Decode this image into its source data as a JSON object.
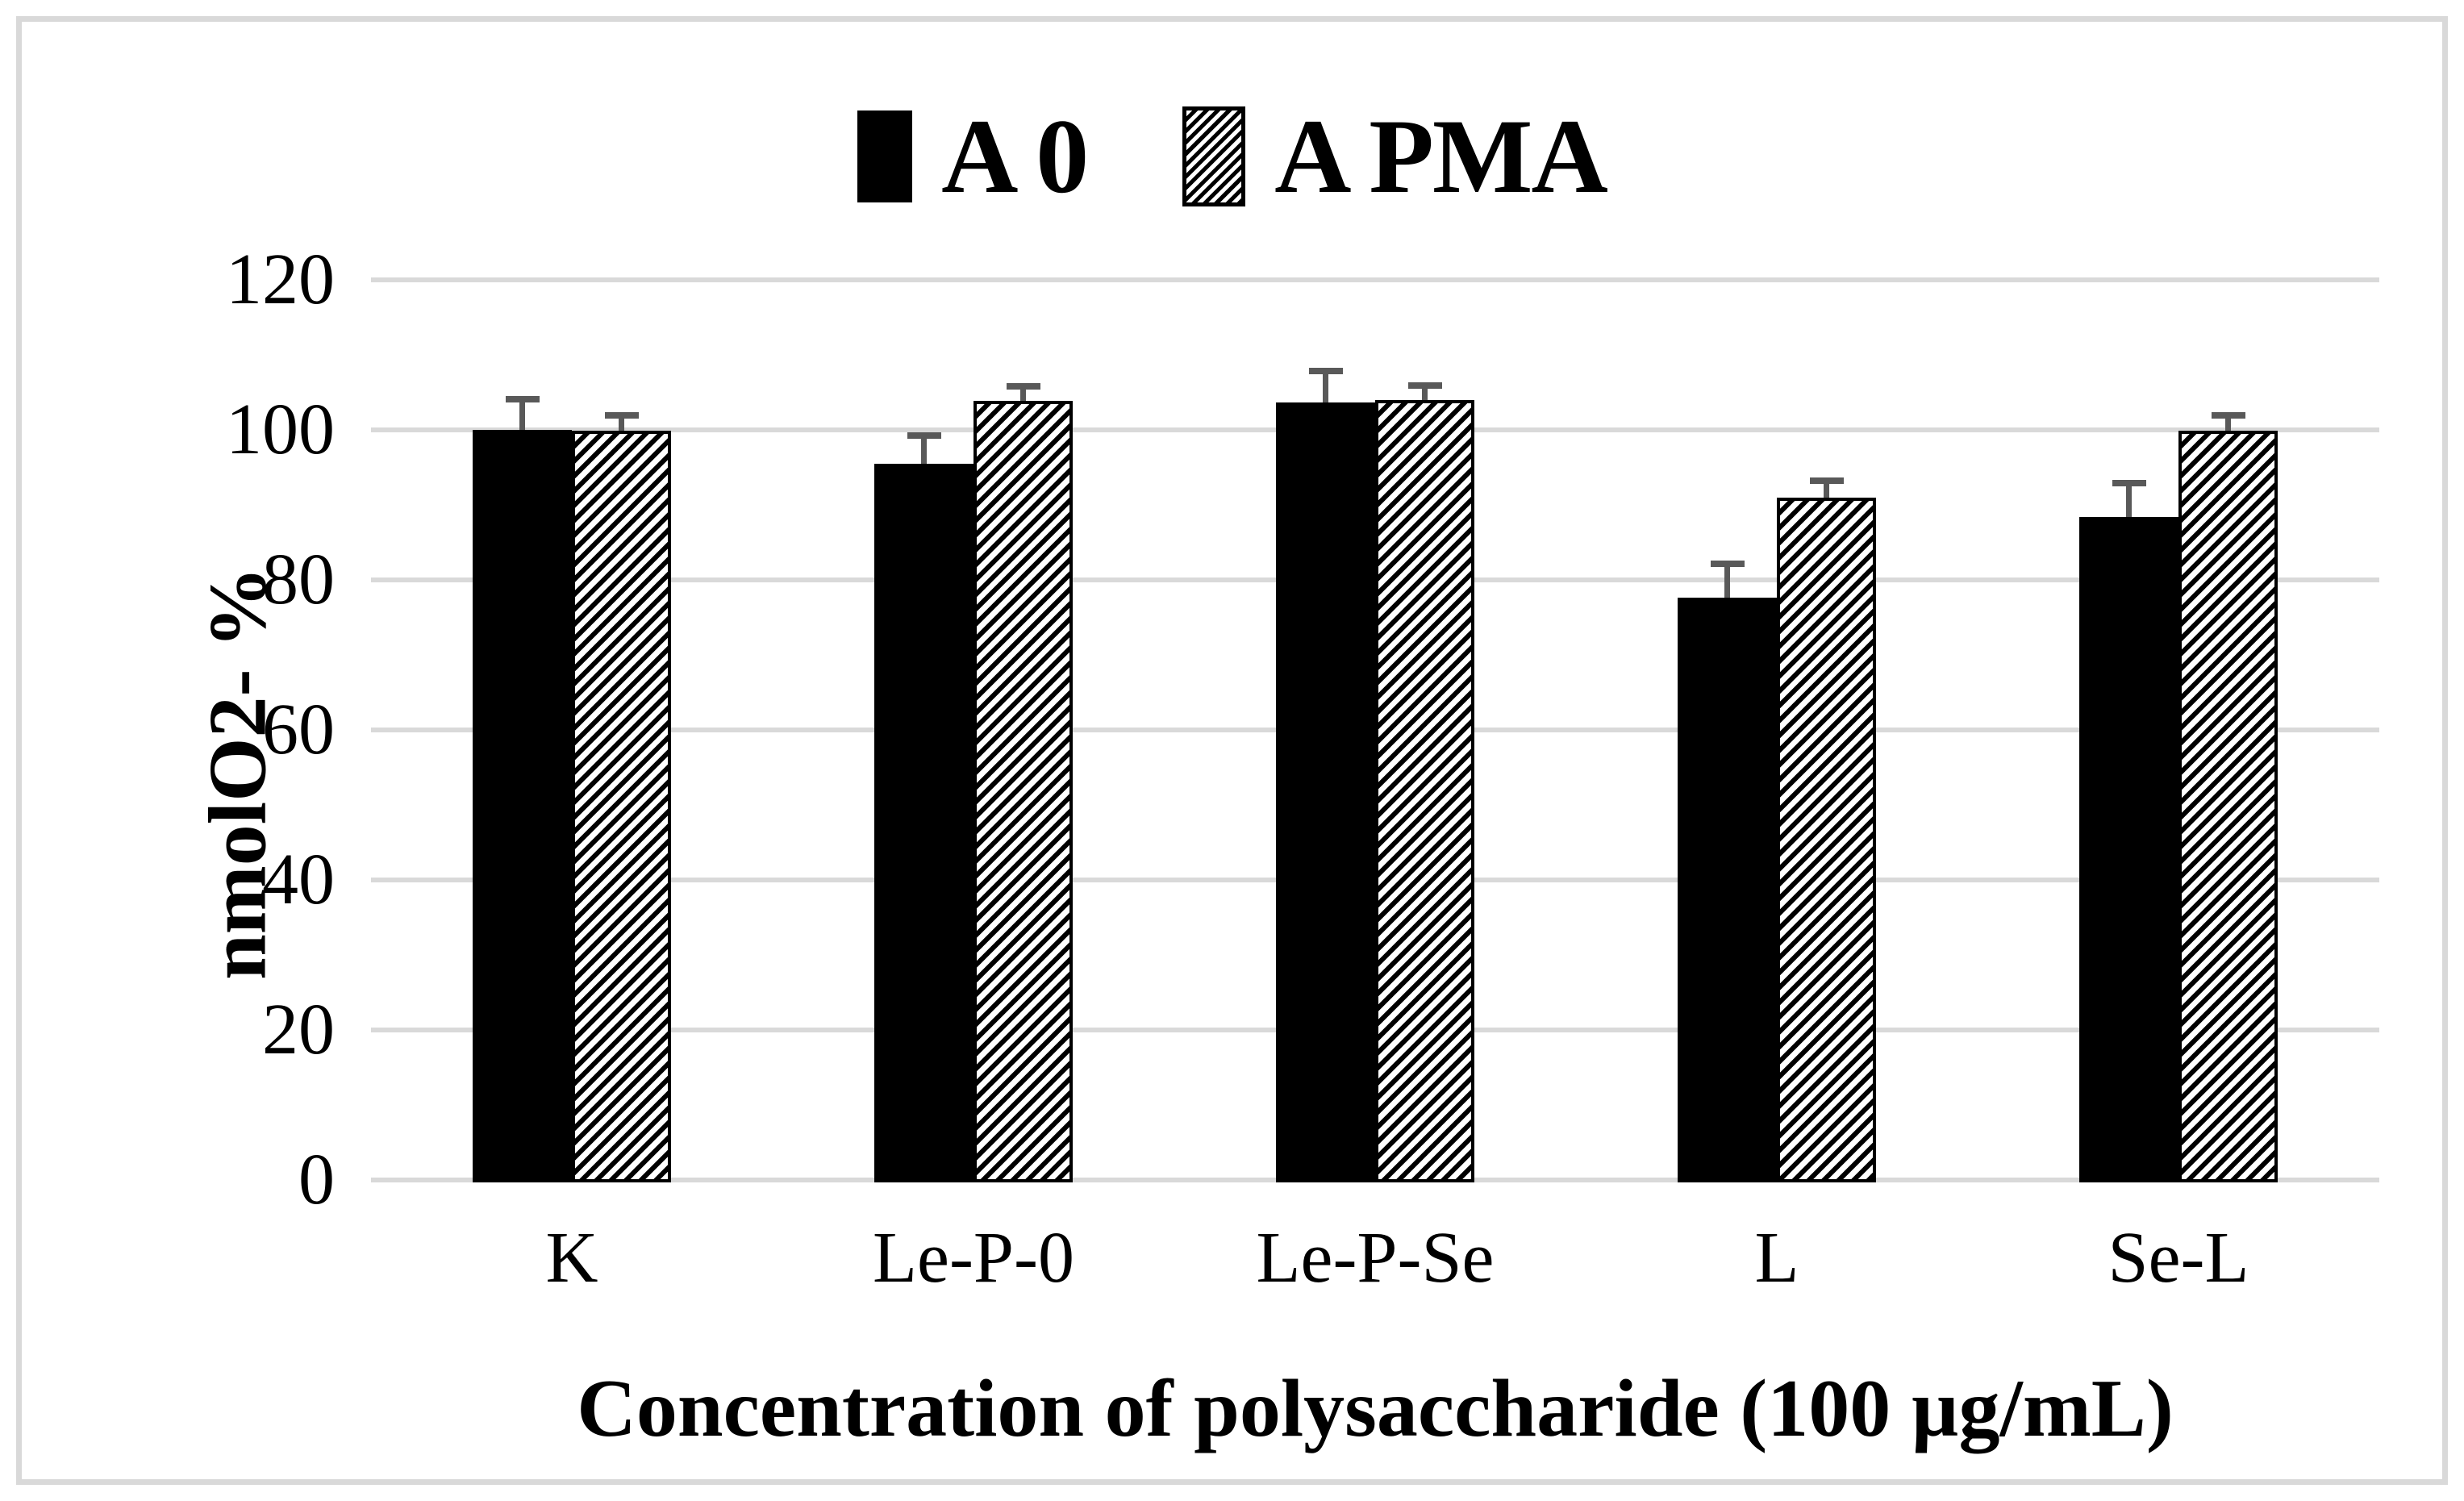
{
  "chart_data": {
    "type": "bar",
    "title": "",
    "categories": [
      "K",
      "Le-P-0",
      "Le-P-Se",
      "L",
      "Se-L"
    ],
    "series": [
      {
        "name": "A 0",
        "fill": "solid-black",
        "values": [
          100.0,
          95.5,
          103.7,
          77.6,
          88.4
        ],
        "errors_plus": [
          4.1,
          3.7,
          4.2,
          4.5,
          4.5
        ]
      },
      {
        "name": "A PMA",
        "fill": "diagonal-hatch",
        "values": [
          99.9,
          103.9,
          104.0,
          91.0,
          99.9
        ],
        "errors_plus": [
          2.0,
          1.9,
          1.9,
          2.2,
          2.0
        ]
      }
    ],
    "xlabel": "Concentration of polysaccharide (100 µg/mL)",
    "ylabel": "nmolO2- %",
    "ylim": [
      0,
      120
    ],
    "yticks": [
      0,
      20,
      40,
      60,
      80,
      100,
      120
    ],
    "grid": true,
    "gridline_orientation": "horizontal",
    "legend_position": "top-center",
    "error_bars": "plus-direction-only"
  },
  "colors": {
    "bar_solid": "#000000",
    "hatch_foreground": "#000000",
    "hatch_background": "#ffffff",
    "gridline": "#d9d9d9",
    "outer_border": "#d9d9d9",
    "error_bar": "#595959",
    "text": "#000000",
    "background": "#ffffff"
  }
}
